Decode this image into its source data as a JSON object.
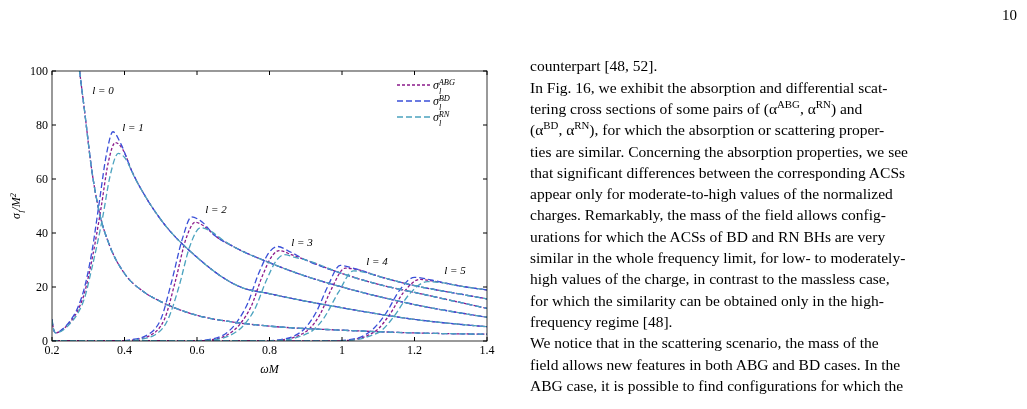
{
  "chart_data": {
    "type": "line",
    "xlabel": "ωM",
    "ylabel": "σ$_{l}$/M$^{2}$",
    "xlim": [
      0.2,
      1.4
    ],
    "xticks": [
      0.2,
      0.4,
      0.6,
      0.8,
      1,
      1.2,
      1.4
    ],
    "ylim": [
      0,
      100
    ],
    "yticks": [
      0,
      20,
      40,
      60,
      80,
      100
    ],
    "grid": false,
    "legend": "top right",
    "marker": "none",
    "series": [
      {
        "name": "σ$_{l}$$^{ABG}$",
        "color": "#8b1a8b",
        "line_style": "dotted",
        "x": [
          0.276,
          0.29,
          0.31,
          0.33,
          0.36,
          0.4,
          0.45,
          0.5,
          0.6,
          0.7,
          0.8,
          1.0,
          1.2,
          1.4
        ],
        "values": [
          100,
          85,
          63,
          48,
          35,
          25,
          18.5,
          14.6,
          9.5,
          7,
          5.5,
          4,
          3,
          2.5
        ]
      },
      {
        "color": "#8b1a8b",
        "line_style": "dotted",
        "x": [
          0.2,
          0.205,
          0.21,
          0.23,
          0.25,
          0.27,
          0.29,
          0.31,
          0.335,
          0.355,
          0.375,
          0.395,
          0.42,
          0.46,
          0.5,
          0.6,
          0.72,
          0.8,
          1.0,
          1.2,
          1.4
        ],
        "values": [
          8,
          4,
          3,
          4.3,
          7,
          11,
          18,
          30,
          49,
          66,
          73.5,
          71,
          63,
          53,
          45,
          31,
          20,
          17.5,
          12.3,
          8,
          5.3
        ]
      },
      {
        "color": "#8b1a8b",
        "line_style": "dotted",
        "x": [
          0.2,
          0.39,
          0.43,
          0.47,
          0.51,
          0.54,
          0.57,
          0.595,
          0.62,
          0.65,
          0.7,
          0.8,
          0.9,
          1.0,
          1.2,
          1.4
        ],
        "values": [
          0,
          0,
          0.5,
          2,
          8,
          22,
          38,
          44,
          42.5,
          39,
          35,
          29,
          24,
          20,
          13.5,
          8.8
        ]
      },
      {
        "color": "#8b1a8b",
        "line_style": "dotted",
        "x": [
          0.2,
          0.59,
          0.64,
          0.68,
          0.72,
          0.75,
          0.78,
          0.81,
          0.827,
          0.86,
          0.9,
          1.0,
          1.1,
          1.2,
          1.4
        ],
        "values": [
          0,
          0,
          0.5,
          2,
          6.5,
          13,
          24,
          32,
          33.5,
          32,
          30,
          25,
          21,
          18,
          12.1
        ]
      },
      {
        "color": "#8b1a8b",
        "line_style": "dotted",
        "x": [
          0.2,
          0.79,
          0.84,
          0.88,
          0.91,
          0.94,
          0.97,
          1.009,
          1.04,
          1.1,
          1.2,
          1.3,
          1.4
        ],
        "values": [
          0,
          0,
          0.5,
          2,
          4.5,
          10,
          19,
          27,
          26.5,
          24,
          20.5,
          18,
          15.6
        ]
      },
      {
        "color": "#8b1a8b",
        "line_style": "dotted",
        "x": [
          0.2,
          0.98,
          1.03,
          1.07,
          1.1,
          1.13,
          1.17,
          1.214,
          1.26,
          1.3,
          1.4
        ],
        "values": [
          0,
          0,
          0.5,
          2,
          4.5,
          9.5,
          18,
          22.8,
          22,
          21,
          18.9
        ]
      },
      {
        "name": "σ$_{l}$$^{BD}$",
        "color": "#3a4fd8",
        "line_style": "dashed",
        "x": [
          0.276,
          0.29,
          0.31,
          0.33,
          0.36,
          0.4,
          0.45,
          0.5,
          0.6,
          0.7,
          0.8,
          1.0,
          1.2,
          1.4
        ],
        "values": [
          100,
          85,
          63,
          48,
          35,
          25,
          18.5,
          14.6,
          9.5,
          7,
          5.5,
          4,
          3,
          2.5
        ]
      },
      {
        "color": "#3a4fd8",
        "line_style": "dashed",
        "x": [
          0.2,
          0.205,
          0.21,
          0.23,
          0.25,
          0.27,
          0.29,
          0.31,
          0.33,
          0.35,
          0.368,
          0.39,
          0.42,
          0.46,
          0.5,
          0.6,
          0.72,
          0.8,
          1.0,
          1.2,
          1.4
        ],
        "values": [
          8,
          4,
          3,
          4.5,
          7.5,
          12,
          20,
          33,
          51,
          69,
          77.5,
          73,
          63,
          53,
          45,
          31,
          20,
          17.5,
          12.3,
          8,
          5.3
        ]
      },
      {
        "color": "#3a4fd8",
        "line_style": "dashed",
        "x": [
          0.2,
          0.38,
          0.42,
          0.46,
          0.5,
          0.53,
          0.56,
          0.585,
          0.61,
          0.65,
          0.7,
          0.8,
          0.9,
          1.0,
          1.2,
          1.4
        ],
        "values": [
          0,
          0,
          0.5,
          2,
          8,
          22,
          38,
          46,
          44.5,
          39,
          35,
          29,
          24,
          20,
          13.5,
          8.8
        ]
      },
      {
        "color": "#3a4fd8",
        "line_style": "dashed",
        "x": [
          0.2,
          0.58,
          0.63,
          0.67,
          0.71,
          0.74,
          0.77,
          0.8,
          0.823,
          0.85,
          0.9,
          1.0,
          1.1,
          1.2,
          1.4
        ],
        "values": [
          0,
          0,
          0.5,
          2,
          7,
          14,
          25,
          33,
          35,
          33.5,
          30,
          25,
          21,
          18,
          12.1
        ]
      },
      {
        "color": "#3a4fd8",
        "line_style": "dashed",
        "x": [
          0.2,
          0.78,
          0.83,
          0.87,
          0.9,
          0.93,
          0.96,
          0.995,
          1.03,
          1.1,
          1.2,
          1.3,
          1.4
        ],
        "values": [
          0,
          0,
          0.5,
          2,
          5,
          11,
          20,
          28,
          27,
          24,
          20.5,
          18,
          15.6
        ]
      },
      {
        "color": "#3a4fd8",
        "line_style": "dashed",
        "x": [
          0.2,
          0.97,
          1.02,
          1.06,
          1.09,
          1.12,
          1.16,
          1.2,
          1.25,
          1.3,
          1.4
        ],
        "values": [
          0,
          0,
          0.5,
          2,
          5,
          10,
          19,
          23.6,
          22.5,
          21,
          18.9
        ]
      },
      {
        "name": "σ$_{l}$$^{RN}$",
        "color": "#4ba3bf",
        "line_style": "dashed",
        "x": [
          0.276,
          0.29,
          0.31,
          0.33,
          0.36,
          0.4,
          0.45,
          0.5,
          0.6,
          0.7,
          0.8,
          1.0,
          1.2,
          1.4
        ],
        "values": [
          100,
          85,
          63,
          48,
          35,
          25,
          18.5,
          14.6,
          9.5,
          7,
          5.5,
          4,
          3,
          2.5
        ]
      },
      {
        "color": "#4ba3bf",
        "line_style": "dashed",
        "x": [
          0.2,
          0.205,
          0.21,
          0.23,
          0.25,
          0.27,
          0.29,
          0.31,
          0.34,
          0.36,
          0.383,
          0.4,
          0.43,
          0.46,
          0.5,
          0.6,
          0.72,
          0.8,
          1.0,
          1.2,
          1.4
        ],
        "values": [
          8,
          4,
          3,
          4,
          6.5,
          10,
          16,
          27,
          46,
          61,
          69.5,
          68,
          60,
          53,
          45,
          31,
          20,
          17.5,
          12.3,
          8,
          5.3
        ]
      },
      {
        "color": "#4ba3bf",
        "line_style": "dashed",
        "x": [
          0.2,
          0.4,
          0.44,
          0.48,
          0.52,
          0.55,
          0.58,
          0.61,
          0.64,
          0.67,
          0.7,
          0.8,
          0.9,
          1.0,
          1.2,
          1.4
        ],
        "values": [
          0,
          0,
          0.5,
          2,
          8,
          20,
          35,
          42,
          40.5,
          37.5,
          35,
          29,
          24,
          20,
          13.5,
          8.8
        ]
      },
      {
        "color": "#4ba3bf",
        "line_style": "dashed",
        "x": [
          0.2,
          0.6,
          0.65,
          0.69,
          0.73,
          0.76,
          0.79,
          0.82,
          0.841,
          0.87,
          0.9,
          1.0,
          1.1,
          1.2,
          1.4
        ],
        "values": [
          0,
          0,
          0.5,
          2,
          6,
          12,
          22,
          30,
          32,
          31,
          30,
          25,
          21,
          18,
          12.1
        ]
      },
      {
        "color": "#4ba3bf",
        "line_style": "dashed",
        "x": [
          0.2,
          0.8,
          0.85,
          0.89,
          0.92,
          0.95,
          0.99,
          1.032,
          1.06,
          1.1,
          1.2,
          1.3,
          1.4
        ],
        "values": [
          0,
          0,
          0.5,
          2,
          4,
          8.5,
          18,
          26,
          25.5,
          24,
          20.5,
          18,
          15.6
        ]
      },
      {
        "color": "#4ba3bf",
        "line_style": "dashed",
        "x": [
          0.2,
          0.99,
          1.04,
          1.08,
          1.11,
          1.14,
          1.19,
          1.236,
          1.28,
          1.32,
          1.4
        ],
        "values": [
          0,
          0,
          0.5,
          2,
          4,
          8.5,
          18,
          22,
          21.5,
          20.5,
          18.9
        ]
      }
    ],
    "annotations": [
      "l = 0",
      "l = 1",
      "l = 2",
      "l = 3",
      "l = 4",
      "l = 5",
      "10",
      "counterpart [48, 52].",
      "In Fig. 16, we exhibit the absorption and differential scat-",
      "tering cross sections of some pairs of (α$^{ABG}$, α$^{RN}$) and",
      "(α$^{BD}$, α$^{RN}$), for which the absorption or scattering proper-",
      "ties are similar. Concerning the absorption properties, we see",
      "that significant differences between the corresponding ACSs",
      "appear only for moderate-to-high values of the normalized",
      "charges.  Remarkably, the mass of the field allows config-",
      "urations for which the ACSs of BD and RN BHs are very",
      "similar in the whole frequency limit, for low- to moderately-",
      "high values of the charge, in contrast to the massless case,",
      "for which the similarity can be obtained only in the high-",
      "frequency regime [48].",
      "We notice that in the scattering scenario, the mass of the",
      "field allows new features in both ABG and BD cases.  In the",
      "ABG case, it is possible to find configurations for which the"
    ]
  }
}
